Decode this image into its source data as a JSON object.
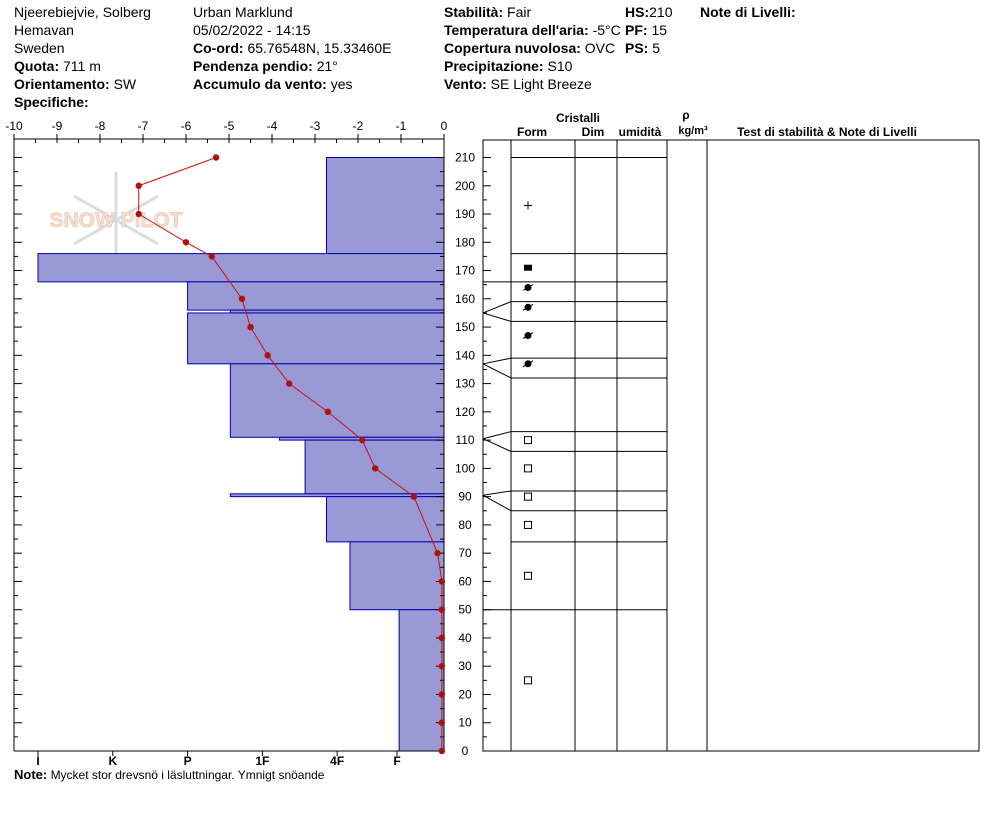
{
  "header": {
    "location_line1": "Njeerebiejvie, Solberg",
    "location_line2": "Hemavan",
    "country": "Sweden",
    "quota_label": "Quota:",
    "quota_value": "711 m",
    "orientamento_label": "Orientamento:",
    "orientamento_value": "SW",
    "specifiche_label": "Specifiche:",
    "observer": "Urban Marklund",
    "datetime": "05/02/2022 - 14:15",
    "coord_label": "Co-ord:",
    "coord_value": "65.76548N, 15.33460E",
    "pendenza_label": "Pendenza pendio:",
    "pendenza_value": "21°",
    "accumulo_label": "Accumulo da vento:",
    "accumulo_value": "yes",
    "stabilita_label": "Stabilità:",
    "stabilita_value": "Fair",
    "temperatura_label": "Temperatura dell'aria:",
    "temperatura_value": "-5°C",
    "copertura_label": "Copertura nuvolosa:",
    "copertura_value": "OVC",
    "precipitazione_label": "Precipitazione:",
    "precipitazione_value": "S10",
    "vento_label": "Vento:",
    "vento_value": "SE Light Breeze",
    "hs_label": "HS:",
    "hs_value": "210",
    "pf_label": "PF:",
    "pf_value": "15",
    "ps_label": "PS:",
    "ps_value": "5",
    "note_livelli_label": "Note di Livelli:"
  },
  "watermark": "SNOW PILOT",
  "note": {
    "label": "Note:",
    "text": "Mycket stor drevsnö i läsluttningar. Ymnigt snöande"
  },
  "table_headers": {
    "cristalli": "Cristalli",
    "form": "Form",
    "dim": "Dim",
    "umidita": "umidità",
    "rho": "ρ",
    "density_unit": "kg/m³",
    "tests": "Test di stabilità & Note di Livelli"
  },
  "chart_data": {
    "type": "snow_profile",
    "colors": {
      "hardness_fill": "#9999d5",
      "hardness_stroke": "#0000aa",
      "temperature": "#cc1111",
      "temperature_point": "#aa1111"
    },
    "temperature_axis": {
      "ticks": [
        -10,
        -9,
        -8,
        -7,
        -6,
        -5,
        -4,
        -3,
        -2,
        -1,
        0
      ],
      "range": [
        -10,
        0
      ]
    },
    "hardness_axis": {
      "labels": [
        "I",
        "K",
        "P",
        "1F",
        "4F",
        "F"
      ],
      "values": [
        9.5,
        7.75,
        6,
        4.25,
        2.5,
        1.1
      ]
    },
    "height_axis": {
      "range": [
        0,
        210
      ],
      "ticks": [
        0,
        10,
        20,
        30,
        40,
        50,
        60,
        70,
        80,
        90,
        100,
        110,
        120,
        130,
        140,
        150,
        160,
        170,
        180,
        190,
        200,
        210
      ]
    },
    "hardness_layers": [
      {
        "bottom": 176,
        "top": 210,
        "hardness": 2.75
      },
      {
        "bottom": 166,
        "top": 176,
        "hardness": 9.5
      },
      {
        "bottom": 156,
        "top": 166,
        "hardness": 6.0
      },
      {
        "bottom": 155,
        "top": 156,
        "hardness": 5.0
      },
      {
        "bottom": 137,
        "top": 155,
        "hardness": 6.0
      },
      {
        "bottom": 111,
        "top": 137,
        "hardness": 5.0
      },
      {
        "bottom": 110,
        "top": 111,
        "hardness": 3.85
      },
      {
        "bottom": 91,
        "top": 110,
        "hardness": 3.25
      },
      {
        "bottom": 90,
        "top": 91,
        "hardness": 5.0
      },
      {
        "bottom": 74,
        "top": 90,
        "hardness": 2.75
      },
      {
        "bottom": 50,
        "top": 74,
        "hardness": 2.2
      },
      {
        "bottom": 0,
        "top": 50,
        "hardness": 1.05
      }
    ],
    "temperature_profile": [
      {
        "height": 210,
        "temp": -5.3
      },
      {
        "height": 200,
        "temp": -7.1
      },
      {
        "height": 190,
        "temp": -7.1
      },
      {
        "height": 180,
        "temp": -6.0
      },
      {
        "height": 175,
        "temp": -5.4
      },
      {
        "height": 160,
        "temp": -4.7
      },
      {
        "height": 150,
        "temp": -4.5
      },
      {
        "height": 140,
        "temp": -4.1
      },
      {
        "height": 130,
        "temp": -3.6
      },
      {
        "height": 120,
        "temp": -2.7
      },
      {
        "height": 110,
        "temp": -1.9
      },
      {
        "height": 100,
        "temp": -1.6
      },
      {
        "height": 90,
        "temp": -0.7
      },
      {
        "height": 70,
        "temp": -0.15
      },
      {
        "height": 60,
        "temp": -0.05
      },
      {
        "height": 50,
        "temp": -0.05
      },
      {
        "height": 40,
        "temp": -0.05
      },
      {
        "height": 30,
        "temp": -0.05
      },
      {
        "height": 20,
        "temp": -0.05
      },
      {
        "height": 10,
        "temp": -0.05
      },
      {
        "height": 0,
        "temp": -0.05
      }
    ],
    "layer_boundaries": [
      210,
      176,
      166,
      159,
      152,
      139,
      132,
      113,
      106,
      92,
      85,
      74,
      50
    ],
    "connectors": [
      {
        "h": 166,
        "center": 166
      },
      {
        "h": 159,
        "center": 155
      },
      {
        "h": 152,
        "center": 155
      },
      {
        "h": 139,
        "center": 137
      },
      {
        "h": 132,
        "center": 137
      },
      {
        "h": 113,
        "center": 110.5
      },
      {
        "h": 106,
        "center": 110.5
      },
      {
        "h": 92,
        "center": 90.5
      },
      {
        "h": 85,
        "center": 90.5
      },
      {
        "h": 50,
        "center": 50
      }
    ],
    "grain_symbols": [
      {
        "height": 193,
        "symbol": "plus"
      },
      {
        "height": 171,
        "symbol": "filled-rect"
      },
      {
        "height": 164,
        "symbol": "rounded"
      },
      {
        "height": 157,
        "symbol": "rounded"
      },
      {
        "height": 147,
        "symbol": "rounded"
      },
      {
        "height": 137,
        "symbol": "rounded"
      },
      {
        "height": 110,
        "symbol": "square"
      },
      {
        "height": 100,
        "symbol": "square"
      },
      {
        "height": 90,
        "symbol": "square"
      },
      {
        "height": 80,
        "symbol": "square"
      },
      {
        "height": 62,
        "symbol": "square"
      },
      {
        "height": 25,
        "symbol": "square"
      }
    ]
  }
}
